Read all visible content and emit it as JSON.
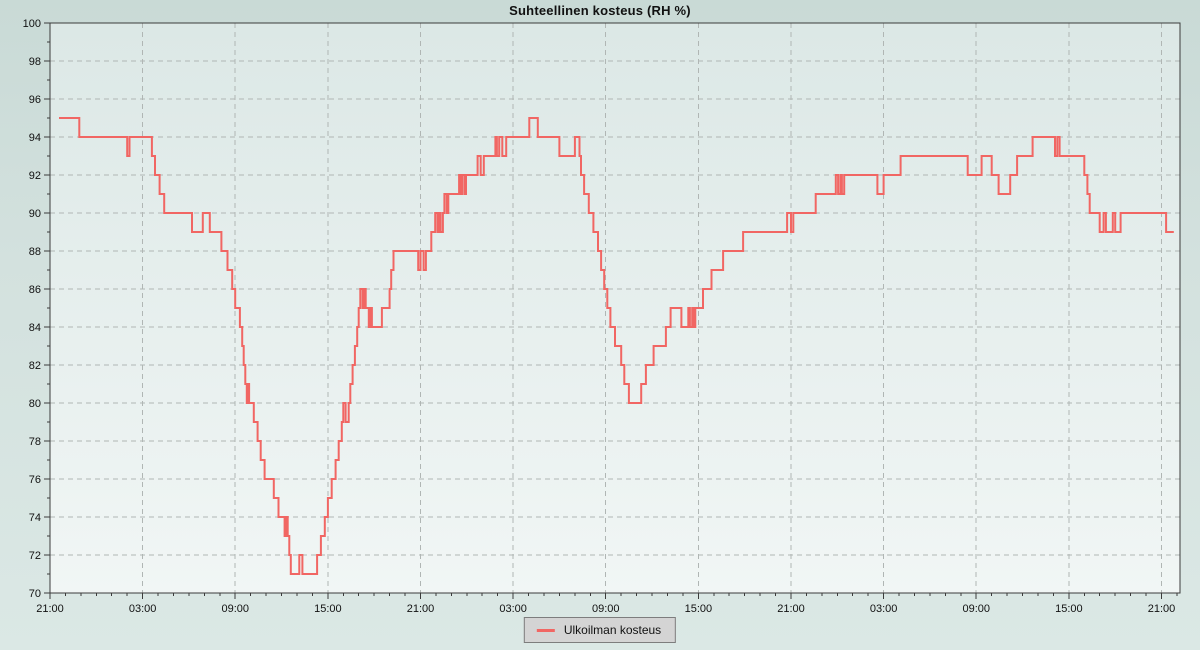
{
  "title": "Suhteellinen kosteus (RH %)",
  "legend": {
    "label": "Ulkoilman kosteus"
  },
  "colors": {
    "line": "#f16663",
    "plot_bg_top": "#dce8e6",
    "plot_bg_bottom": "#f1f6f5",
    "page_bg_top": "#c9dad6",
    "page_bg_bottom": "#dbe8e5",
    "grid": "#b0b6b4",
    "axis": "#3b3b3b",
    "tick_text": "#111111",
    "legend_bg": "#d4d4d4",
    "legend_border": "#7d7d7d"
  },
  "chart_data": {
    "type": "line",
    "step": true,
    "title": "Suhteellinen kosteus (RH %)",
    "xlabel": "",
    "ylabel": "",
    "x_unit": "hours since first tick (21:00), 3-day span",
    "xlim": [
      0,
      73.2
    ],
    "ylim": [
      70,
      100
    ],
    "y_ticks": [
      70,
      72,
      74,
      76,
      78,
      80,
      82,
      84,
      86,
      88,
      90,
      92,
      94,
      96,
      98,
      100
    ],
    "x_major_ticks_hours": [
      0,
      6,
      12,
      18,
      24,
      30,
      36,
      42,
      48,
      54,
      60,
      66,
      72
    ],
    "x_tick_labels": [
      "21:00",
      "03:00",
      "09:00",
      "15:00",
      "21:00",
      "03:00",
      "09:00",
      "15:00",
      "21:00",
      "03:00",
      "09:00",
      "15:00",
      "21:00"
    ],
    "x_minor_step_hours": 1,
    "grid": "dashed",
    "legend_position": "bottom-center",
    "series": [
      {
        "name": "Ulkoilman kosteus",
        "color": "#f16663",
        "end_hour": 72.8,
        "points": [
          [
            0.58,
            95
          ],
          [
            1.9,
            94
          ],
          [
            5.0,
            93
          ],
          [
            5.15,
            94
          ],
          [
            6.6,
            93
          ],
          [
            6.8,
            92
          ],
          [
            7.1,
            91
          ],
          [
            7.4,
            90
          ],
          [
            9.2,
            89
          ],
          [
            9.9,
            90
          ],
          [
            10.35,
            89
          ],
          [
            11.1,
            88
          ],
          [
            11.5,
            87
          ],
          [
            11.8,
            86
          ],
          [
            12.0,
            85
          ],
          [
            12.3,
            84
          ],
          [
            12.45,
            83
          ],
          [
            12.55,
            82
          ],
          [
            12.65,
            81
          ],
          [
            12.75,
            80
          ],
          [
            12.8,
            81
          ],
          [
            12.9,
            80
          ],
          [
            13.2,
            79
          ],
          [
            13.45,
            78
          ],
          [
            13.65,
            77
          ],
          [
            13.9,
            76
          ],
          [
            14.5,
            75
          ],
          [
            14.8,
            74
          ],
          [
            15.2,
            73
          ],
          [
            15.3,
            74
          ],
          [
            15.4,
            73
          ],
          [
            15.5,
            72
          ],
          [
            15.6,
            71
          ],
          [
            16.15,
            72
          ],
          [
            16.35,
            71
          ],
          [
            17.3,
            72
          ],
          [
            17.55,
            73
          ],
          [
            17.8,
            74
          ],
          [
            18.0,
            75
          ],
          [
            18.25,
            76
          ],
          [
            18.5,
            77
          ],
          [
            18.7,
            78
          ],
          [
            18.9,
            79
          ],
          [
            19.0,
            80
          ],
          [
            19.15,
            79
          ],
          [
            19.35,
            80
          ],
          [
            19.45,
            81
          ],
          [
            19.6,
            82
          ],
          [
            19.75,
            83
          ],
          [
            19.9,
            84
          ],
          [
            20.0,
            85
          ],
          [
            20.1,
            86
          ],
          [
            20.25,
            85
          ],
          [
            20.32,
            86
          ],
          [
            20.45,
            85
          ],
          [
            20.65,
            84
          ],
          [
            20.75,
            85
          ],
          [
            20.85,
            84
          ],
          [
            21.5,
            85
          ],
          [
            22.0,
            86
          ],
          [
            22.1,
            87
          ],
          [
            22.25,
            88
          ],
          [
            23.85,
            87
          ],
          [
            24.0,
            88
          ],
          [
            24.2,
            87
          ],
          [
            24.35,
            88
          ],
          [
            24.7,
            89
          ],
          [
            24.95,
            90
          ],
          [
            25.1,
            89
          ],
          [
            25.2,
            90
          ],
          [
            25.3,
            89
          ],
          [
            25.45,
            90
          ],
          [
            25.55,
            91
          ],
          [
            25.7,
            90
          ],
          [
            25.8,
            91
          ],
          [
            26.5,
            92
          ],
          [
            26.6,
            91
          ],
          [
            26.7,
            92
          ],
          [
            26.85,
            91
          ],
          [
            26.95,
            92
          ],
          [
            27.7,
            93
          ],
          [
            27.9,
            92
          ],
          [
            28.1,
            93
          ],
          [
            28.85,
            94
          ],
          [
            28.95,
            93
          ],
          [
            29.1,
            94
          ],
          [
            29.3,
            93
          ],
          [
            29.55,
            94
          ],
          [
            31.05,
            95
          ],
          [
            31.6,
            94
          ],
          [
            33.0,
            93
          ],
          [
            34.0,
            94
          ],
          [
            34.3,
            93
          ],
          [
            34.4,
            92
          ],
          [
            34.6,
            91
          ],
          [
            34.9,
            90
          ],
          [
            35.2,
            89
          ],
          [
            35.5,
            88
          ],
          [
            35.7,
            87
          ],
          [
            35.9,
            86
          ],
          [
            36.1,
            85
          ],
          [
            36.3,
            84
          ],
          [
            36.6,
            83
          ],
          [
            37.0,
            82
          ],
          [
            37.2,
            81
          ],
          [
            37.5,
            80
          ],
          [
            38.3,
            81
          ],
          [
            38.6,
            82
          ],
          [
            39.1,
            83
          ],
          [
            39.9,
            84
          ],
          [
            40.2,
            85
          ],
          [
            40.9,
            84
          ],
          [
            41.35,
            85
          ],
          [
            41.45,
            84
          ],
          [
            41.6,
            85
          ],
          [
            41.7,
            84
          ],
          [
            41.8,
            85
          ],
          [
            42.3,
            86
          ],
          [
            42.85,
            87
          ],
          [
            43.6,
            88
          ],
          [
            44.9,
            89
          ],
          [
            47.75,
            90
          ],
          [
            48.0,
            89
          ],
          [
            48.15,
            90
          ],
          [
            49.6,
            91
          ],
          [
            50.9,
            92
          ],
          [
            51.05,
            91
          ],
          [
            51.2,
            92
          ],
          [
            51.3,
            91
          ],
          [
            51.45,
            92
          ],
          [
            53.6,
            91
          ],
          [
            54.0,
            92
          ],
          [
            55.1,
            93
          ],
          [
            59.45,
            92
          ],
          [
            60.35,
            93
          ],
          [
            61.0,
            92
          ],
          [
            61.45,
            91
          ],
          [
            62.2,
            92
          ],
          [
            62.65,
            93
          ],
          [
            63.65,
            94
          ],
          [
            65.1,
            93
          ],
          [
            65.25,
            94
          ],
          [
            65.4,
            93
          ],
          [
            67.0,
            92
          ],
          [
            67.2,
            91
          ],
          [
            67.35,
            90
          ],
          [
            68.0,
            89
          ],
          [
            68.25,
            90
          ],
          [
            68.4,
            89
          ],
          [
            68.85,
            90
          ],
          [
            69.0,
            89
          ],
          [
            69.35,
            90
          ],
          [
            72.3,
            89
          ]
        ]
      }
    ]
  }
}
